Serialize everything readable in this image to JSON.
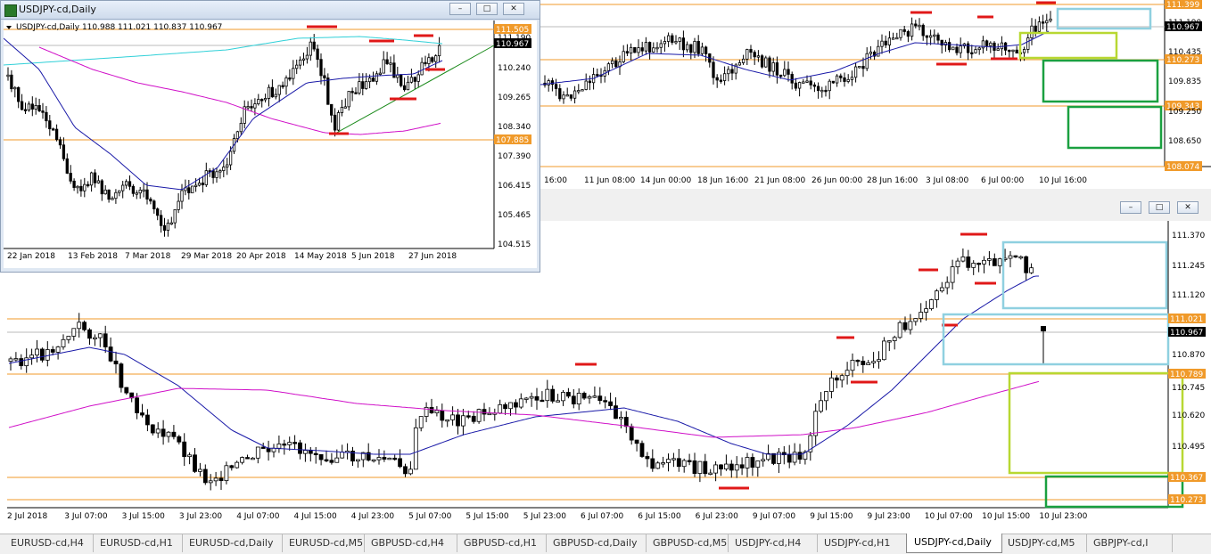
{
  "top_chart": {
    "price_tags": [
      {
        "text": "111.399",
        "kind": "orange"
      },
      {
        "text": "111.190",
        "kind": "plain"
      },
      {
        "text": "110.967",
        "kind": "black"
      },
      {
        "text": "110.435",
        "kind": "plain"
      },
      {
        "text": "110.273",
        "kind": "orange"
      },
      {
        "text": "109.835",
        "kind": "plain"
      },
      {
        "text": "109.343",
        "kind": "orange"
      },
      {
        "text": "109.250",
        "kind": "plain"
      },
      {
        "text": "108.650",
        "kind": "plain"
      },
      {
        "text": "108.074",
        "kind": "orange"
      }
    ],
    "time_labels": [
      "16:00",
      "11 Jun 08:00",
      "14 Jun 00:00",
      "18 Jun 16:00",
      "21 Jun 08:00",
      "26 Jun 00:00",
      "28 Jun 16:00",
      "3 Jul 08:00",
      "6 Jul 00:00",
      "10 Jul 16:00"
    ]
  },
  "daily_window": {
    "title": "USDJPY-cd,Daily",
    "info": "USDJPY-cd,Daily  110.988 111.021 110.837 110.967",
    "price_tags": [
      {
        "text": "111.505",
        "kind": "orange"
      },
      {
        "text": "111.190",
        "kind": "plain"
      },
      {
        "text": "110.967",
        "kind": "black"
      },
      {
        "text": "110.240",
        "kind": "plain"
      },
      {
        "text": "109.265",
        "kind": "plain"
      },
      {
        "text": "108.340",
        "kind": "plain"
      },
      {
        "text": "107.885",
        "kind": "orange"
      },
      {
        "text": "107.390",
        "kind": "plain"
      },
      {
        "text": "106.415",
        "kind": "plain"
      },
      {
        "text": "105.465",
        "kind": "plain"
      },
      {
        "text": "104.515",
        "kind": "plain"
      }
    ],
    "time_labels": [
      "22 Jan 2018",
      "13 Feb 2018",
      "7 Mar 2018",
      "29 Mar 2018",
      "20 Apr 2018",
      "14 May 2018",
      "5 Jun 2018",
      "27 Jun 2018"
    ],
    "buttons": {
      "minimize": "–",
      "maximize": "□",
      "close": "✕"
    }
  },
  "bottom_chart": {
    "price_tags": [
      {
        "text": "111.370",
        "kind": "plain"
      },
      {
        "text": "111.245",
        "kind": "plain"
      },
      {
        "text": "111.120",
        "kind": "plain"
      },
      {
        "text": "111.021",
        "kind": "orange"
      },
      {
        "text": "110.967",
        "kind": "black"
      },
      {
        "text": "110.870",
        "kind": "plain"
      },
      {
        "text": "110.789",
        "kind": "orange"
      },
      {
        "text": "110.745",
        "kind": "plain"
      },
      {
        "text": "110.620",
        "kind": "plain"
      },
      {
        "text": "110.495",
        "kind": "plain"
      },
      {
        "text": "110.367",
        "kind": "orange"
      },
      {
        "text": "110.273",
        "kind": "orange"
      }
    ],
    "time_labels": [
      "2 Jul 2018",
      "3 Jul 07:00",
      "3 Jul 15:00",
      "3 Jul 23:00",
      "4 Jul 07:00",
      "4 Jul 15:00",
      "4 Jul 23:00",
      "5 Jul 07:00",
      "5 Jul 15:00",
      "5 Jul 23:00",
      "6 Jul 07:00",
      "6 Jul 15:00",
      "6 Jul 23:00",
      "9 Jul 07:00",
      "9 Jul 15:00",
      "9 Jul 23:00",
      "10 Jul 07:00",
      "10 Jul 15:00",
      "10 Jul 23:00"
    ],
    "buttons": {
      "minimize": "–",
      "maximize": "□",
      "close": "✕"
    }
  },
  "tabs": [
    "EURUSD-cd,H4",
    "EURUSD-cd,H1",
    "EURUSD-cd,Daily",
    "EURUSD-cd,M5",
    "GBPUSD-cd,H4",
    "GBPUSD-cd,H1",
    "GBPUSD-cd,Daily",
    "GBPUSD-cd,M5",
    "USDJPY-cd,H4",
    "USDJPY-cd,H1",
    "USDJPY-cd,Daily",
    "USDJPY-cd,M5",
    "GBPJPY-cd,I"
  ],
  "active_tab": "USDJPY-cd,Daily",
  "colors": {
    "orange": "#f09a2a",
    "blue_ma": "#1a1aa8",
    "magenta_ma": "#d010c8",
    "cyan_ma": "#30d0d8",
    "red_mark": "#e01818",
    "light_blue_box": "#8fd0e0",
    "lime_box": "#b8d832",
    "green_box": "#1aa040",
    "trend": "#1a8a1a"
  }
}
